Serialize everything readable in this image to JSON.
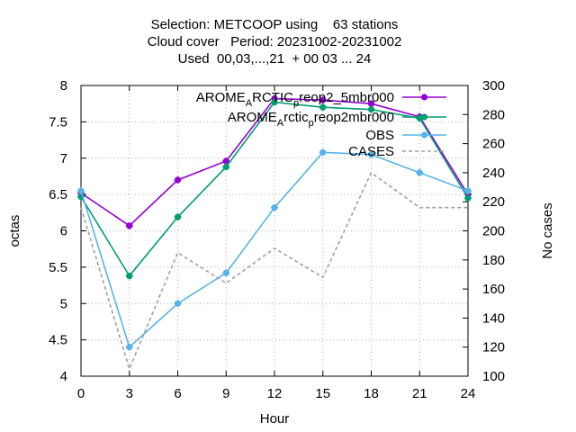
{
  "chart_data": {
    "type": "line",
    "title_lines": [
      "Selection: METCOOP using    63 stations",
      "Cloud cover   Period: 20231002-20231002",
      "Used  00,03,...,21  + 00 03 ... 24"
    ],
    "xlabel": "Hour",
    "ylabel": "octas",
    "y2label": "No cases",
    "x": [
      0,
      3,
      6,
      9,
      12,
      15,
      18,
      21,
      24
    ],
    "xlim": [
      0,
      24
    ],
    "ylim": [
      4,
      8
    ],
    "y2lim": [
      100,
      300
    ],
    "x_ticks": [
      "0",
      "3",
      "6",
      "9",
      "12",
      "15",
      "18",
      "21",
      "24"
    ],
    "y_ticks": [
      "4",
      "4.5",
      "5",
      "5.5",
      "6",
      "6.5",
      "7",
      "7.5",
      "8"
    ],
    "y2_ticks": [
      "100",
      "120",
      "140",
      "160",
      "180",
      "200",
      "220",
      "240",
      "260",
      "280",
      "300"
    ],
    "grid": true,
    "legend_position": "top-right",
    "series": [
      {
        "name_parts": [
          "AROME",
          "A",
          "RCTIC",
          "p",
          "reop2_5mbr000"
        ],
        "color": "#9400d3",
        "axis": "y1",
        "marker": "filled",
        "values": [
          6.52,
          6.07,
          6.7,
          6.96,
          7.82,
          7.8,
          7.75,
          7.57,
          6.5
        ]
      },
      {
        "name_parts": [
          "AROME",
          "A",
          "rctic",
          "p",
          "reop2mbr000"
        ],
        "color": "#009e73",
        "axis": "y1",
        "marker": "filled",
        "values": [
          6.47,
          5.38,
          6.19,
          6.88,
          7.77,
          7.7,
          7.67,
          7.55,
          6.45
        ]
      },
      {
        "name": "OBS",
        "color": "#56b4e9",
        "axis": "y1",
        "marker": "filled",
        "values": [
          6.55,
          4.4,
          5.0,
          5.42,
          6.32,
          7.08,
          7.05,
          6.8,
          6.55
        ]
      },
      {
        "name": "CASES",
        "color": "#a0a0a0",
        "axis": "y2",
        "dashed": true,
        "values": [
          216,
          105,
          185,
          164,
          188,
          168,
          240,
          216,
          216
        ]
      }
    ]
  }
}
